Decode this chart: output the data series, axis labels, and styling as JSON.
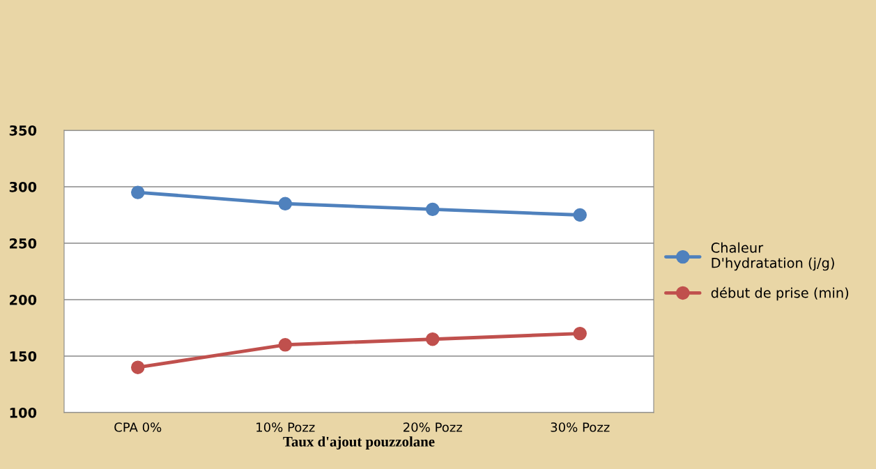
{
  "chart_data": {
    "type": "line",
    "xlabel": "Taux d'ajout pouzzolane",
    "categories": [
      "CPA 0%",
      "10% Pozz",
      "20% Pozz",
      "30% Pozz"
    ],
    "series": [
      {
        "name": "Chaleur D'hydratation (j/g)",
        "color": "#4f81bd",
        "values": [
          295,
          285,
          280,
          275
        ]
      },
      {
        "name": "début de prise (min)",
        "color": "#c0504d",
        "values": [
          140,
          160,
          165,
          170
        ]
      }
    ],
    "ylim": [
      100,
      350
    ],
    "yticks": [
      100,
      150,
      200,
      250,
      300,
      350
    ],
    "grid": "y",
    "legend": "right",
    "marker": "circle",
    "line_style": "solid"
  }
}
